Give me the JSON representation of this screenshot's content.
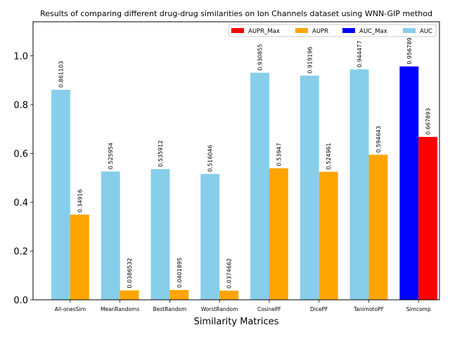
{
  "chart_data": {
    "type": "bar",
    "title": "Results of comparing different drug-drug similarities on Ion Channels dataset using WNN-GIP method",
    "xlabel": "Similarity Matrices",
    "ylabel": "",
    "ylim": [
      0,
      1.14
    ],
    "yticks": [
      "0.0",
      "0.2",
      "0.4",
      "0.6",
      "0.8",
      "1.0"
    ],
    "categories": [
      "All-onesSim",
      "MeanRandoms",
      "BestRandom",
      "WorstRandom",
      "CosinePF",
      "DicePF",
      "TanimotoPF",
      "Simcomp"
    ],
    "series": [
      {
        "name": "AUC",
        "color": "#87ceeb",
        "values": [
          0.861103,
          0.525954,
          0.535912,
          0.516046,
          0.930855,
          0.919196,
          0.944477,
          0.956789
        ],
        "labels": [
          "0.861103",
          "0.525954",
          "0.535912",
          "0.516046",
          "0.930855",
          "0.919196",
          "0.944477",
          "0.956789"
        ]
      },
      {
        "name": "AUPR",
        "color": "#ffa500",
        "values": [
          0.34916,
          0.0386532,
          0.0401895,
          0.0374662,
          0.53947,
          0.524961,
          0.594643,
          0.667893
        ],
        "labels": [
          "0.34916",
          "0.0386532",
          "0.0401895",
          "0.0374662",
          "0.53947",
          "0.524961",
          "0.594643",
          "0.667893"
        ]
      }
    ],
    "highlight": {
      "category": "Simcomp",
      "auc_color": "#0000ff",
      "aupr_color": "#ff0000"
    },
    "legend": {
      "position": "top-right",
      "entries": [
        {
          "label": "AUPR_Max",
          "color": "#ff0000"
        },
        {
          "label": "AUPR",
          "color": "#ffa500"
        },
        {
          "label": "AUC_Max",
          "color": "#0000ff"
        },
        {
          "label": "AUC",
          "color": "#87ceeb"
        }
      ]
    },
    "grid": false
  }
}
